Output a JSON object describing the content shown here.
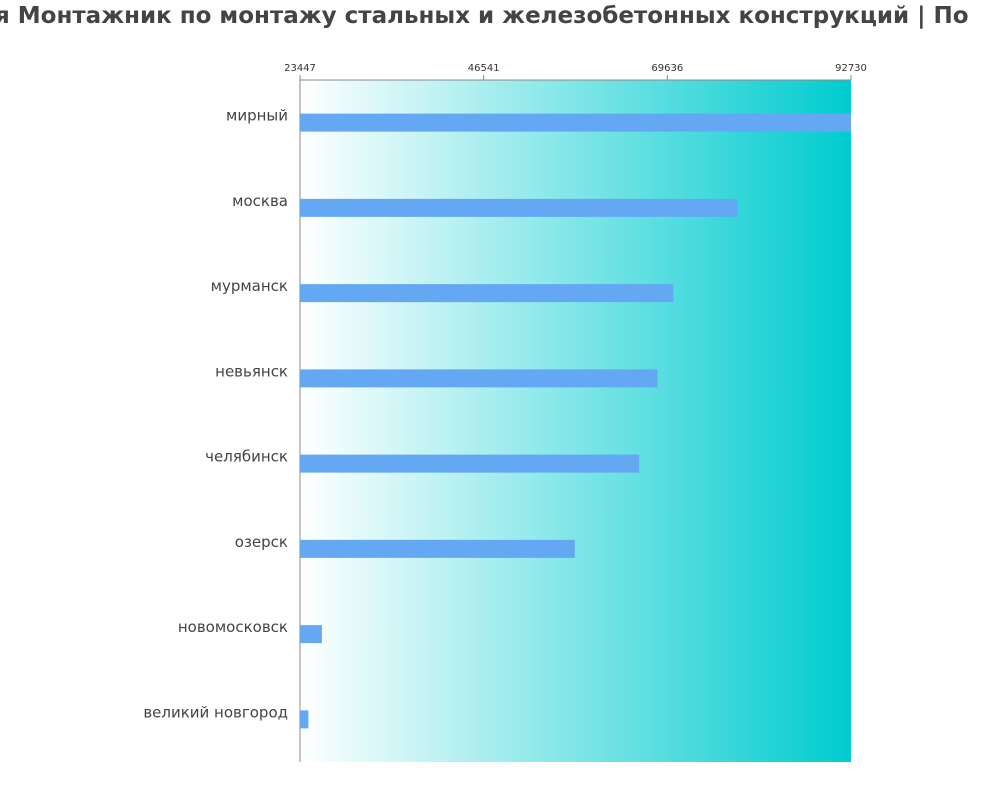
{
  "chart_data": {
    "type": "bar",
    "orientation": "horizontal",
    "title": "я Монтажник по монтажу стальных и железобетонных конструкций | По",
    "xlabel": "",
    "ylabel": "",
    "x_ticks": [
      23447,
      46541,
      69636,
      92730
    ],
    "xlim": [
      23447,
      92730
    ],
    "categories": [
      "мирный",
      "москва",
      "мурманск",
      "невьянск",
      "челябинск",
      "озерск",
      "новомосковск",
      "великий новгород"
    ],
    "values": [
      92730,
      78500,
      70400,
      68400,
      66100,
      58000,
      26200,
      24500
    ],
    "bar_color": "#64a7f2",
    "background_gradient": [
      "#ffffff",
      "#00cccf"
    ],
    "grid": false,
    "legend": "none"
  }
}
